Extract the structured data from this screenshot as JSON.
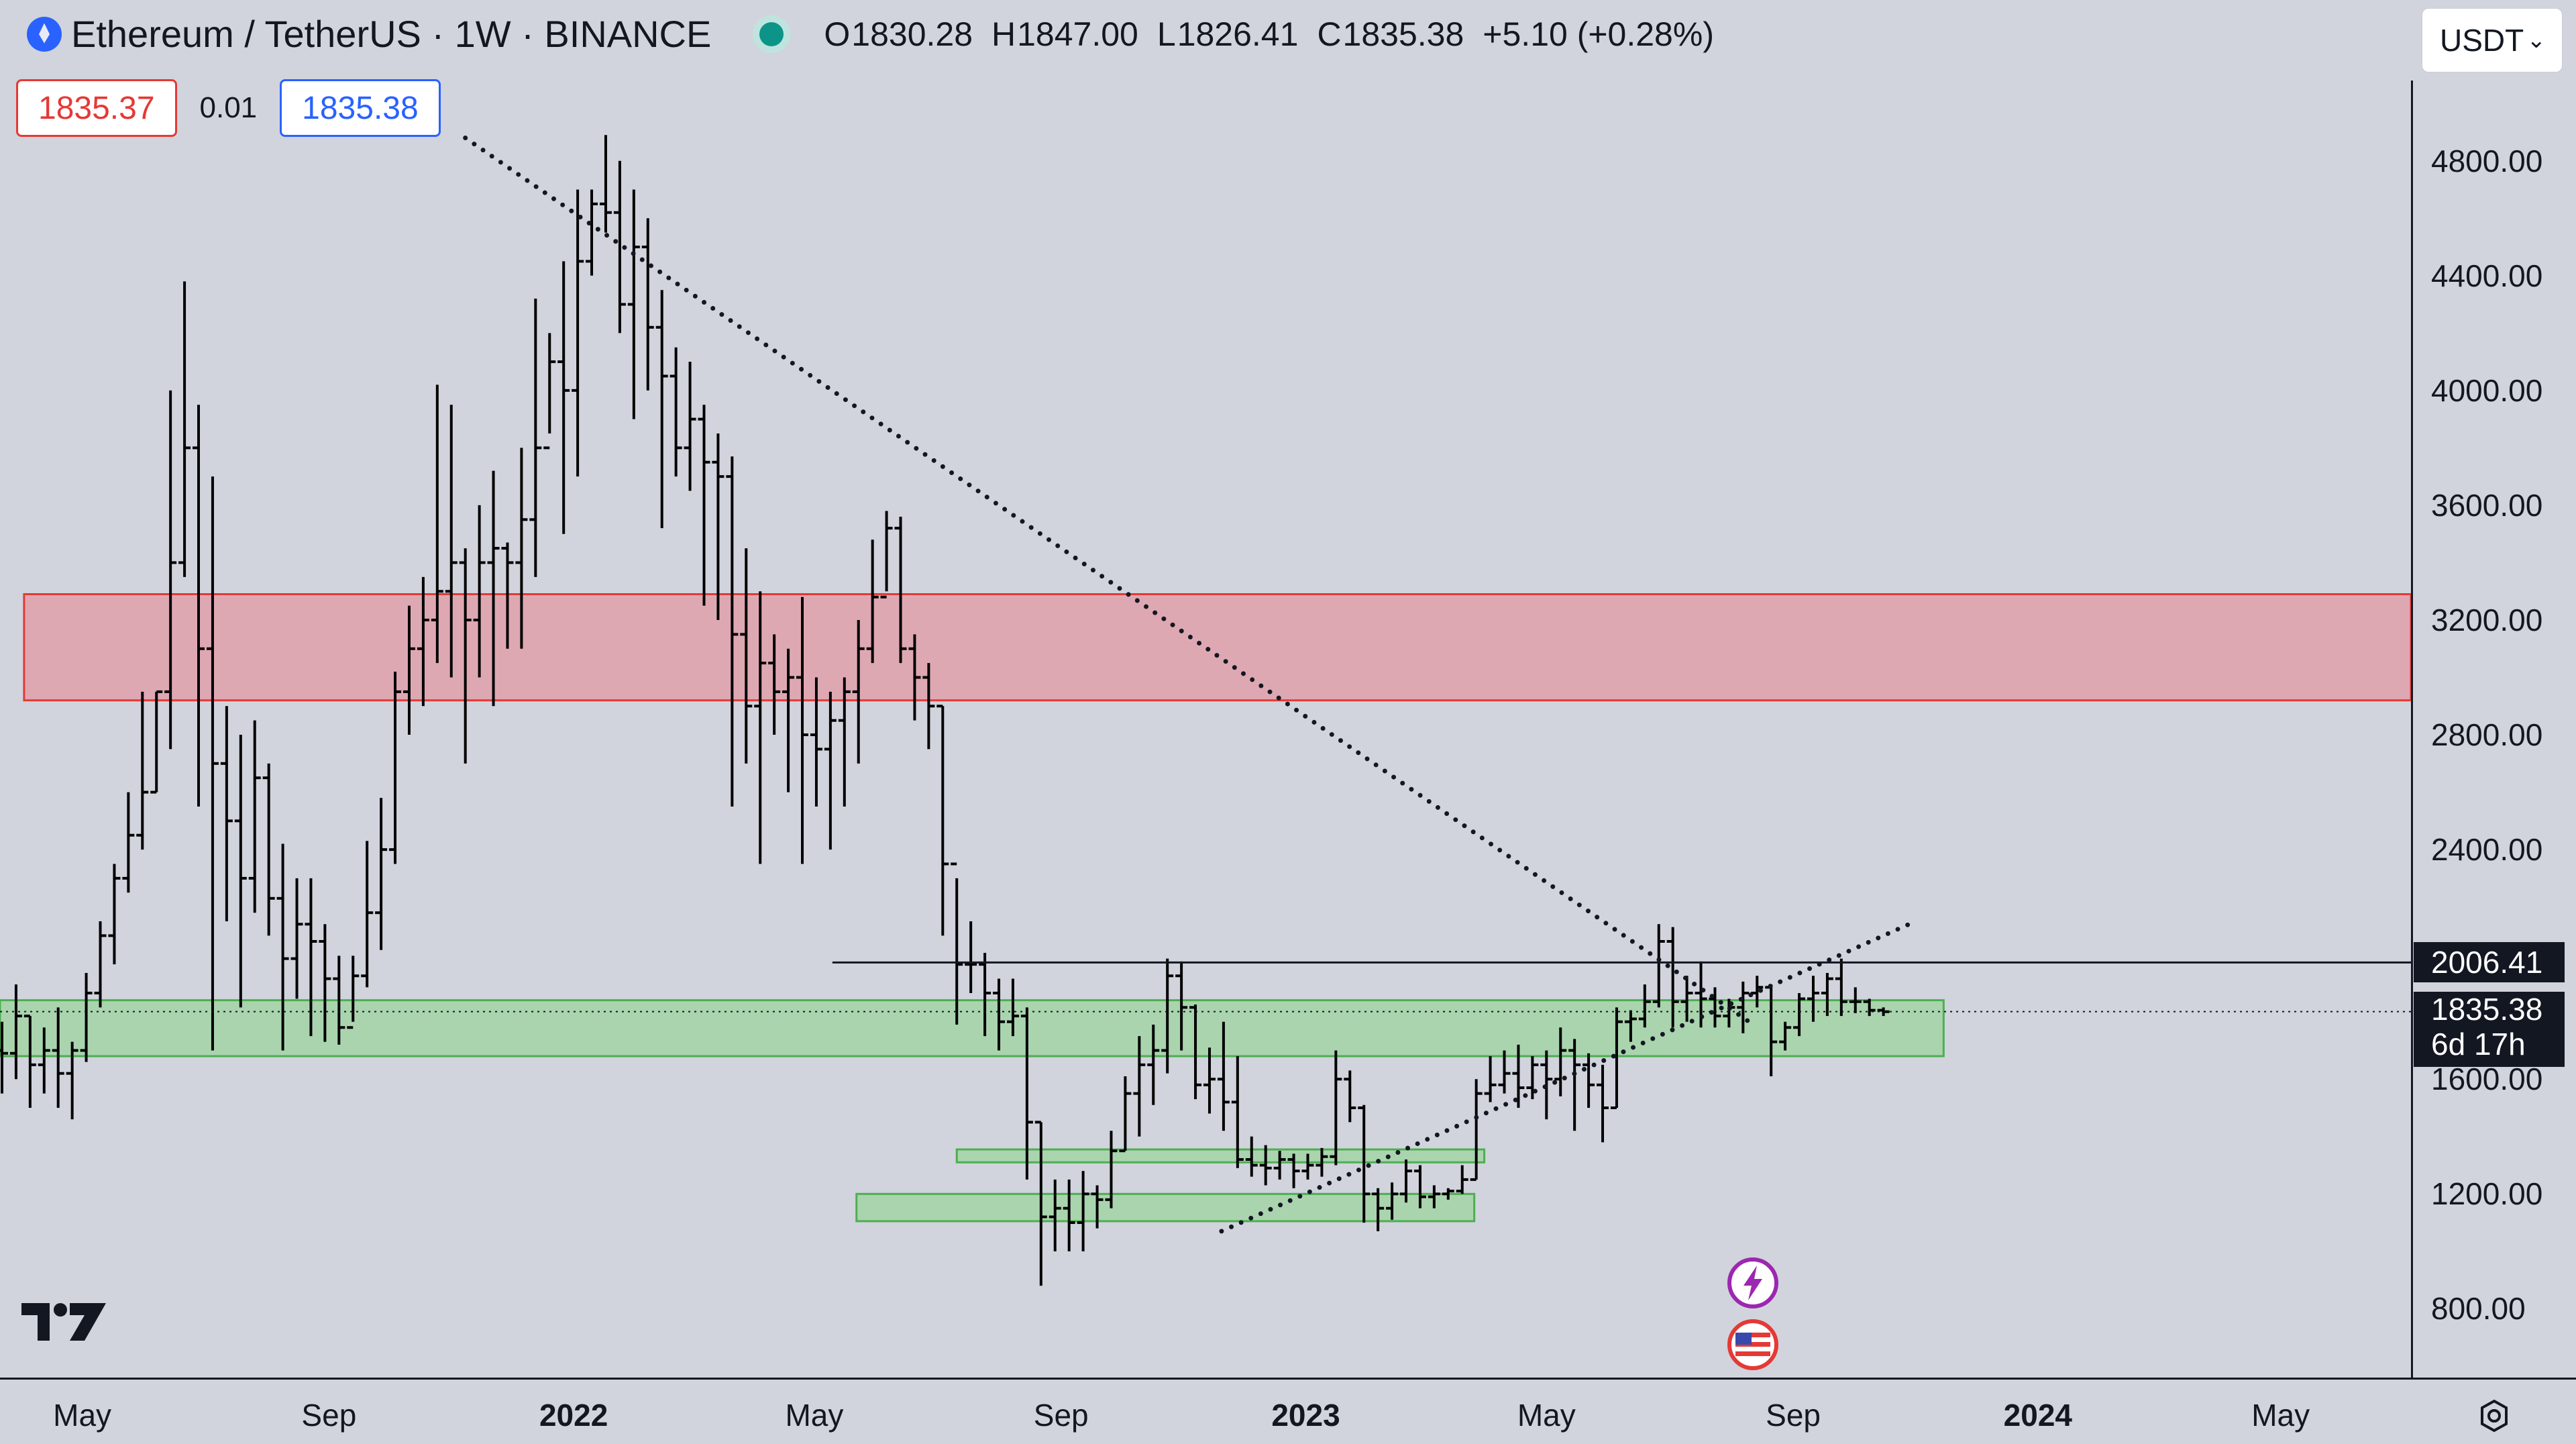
{
  "header": {
    "symbol_title": "Ethereum / TetherUS · 1W · BINANCE",
    "ohlc": {
      "open_label": "O",
      "open": "1830.28",
      "high_label": "H",
      "high": "1847.00",
      "low_label": "L",
      "low": "1826.41",
      "close_label": "C",
      "close": "1835.38",
      "change": "+5.10 (+0.28%)"
    },
    "currency": "USDT"
  },
  "trade": {
    "sell_price": "1835.37",
    "spread": "0.01",
    "buy_price": "1835.38"
  },
  "axis_tags": {
    "level": "2006.41",
    "last": "1835.38",
    "countdown": "6d 17h"
  },
  "icons": [
    "symbol-logo-icon",
    "market-open-dot-icon",
    "chevron-down-icon",
    "tradingview-logo-icon",
    "lightning-event-icon",
    "us-flag-event-icon",
    "settings-icon"
  ],
  "colors": {
    "background": "#d1d4dc",
    "resistance_zone_fill": "#dea8b3",
    "resistance_zone_border": "#e53935",
    "support_zone_fill": "#a3d3a6",
    "support_zone_border": "#4caf50",
    "bars": "#000000",
    "sell": "#e53935",
    "buy": "#2962ff"
  },
  "chart_data": {
    "type": "ohlc_bar",
    "symbol": "ETH/USDT",
    "interval": "1W",
    "y_ticks": [
      800,
      1200,
      1600,
      2000,
      2400,
      2800,
      3200,
      3600,
      4000,
      4400,
      4800
    ],
    "y_tick_labels": [
      "800.00",
      "1200.00",
      "1600.00",
      "2000.00",
      "2400.00",
      "2800.00",
      "3200.00",
      "3600.00",
      "4000.00",
      "4400.00",
      "4800.00"
    ],
    "ylim": [
      560,
      5080
    ],
    "xlim": [
      "2021-03-21",
      "2024-07-05"
    ],
    "x_ticks": [
      {
        "date": "2021-05-01",
        "label": "May",
        "bold": false
      },
      {
        "date": "2021-09-01",
        "label": "Sep",
        "bold": false
      },
      {
        "date": "2022-01-01",
        "label": "2022",
        "bold": true
      },
      {
        "date": "2022-05-01",
        "label": "May",
        "bold": false
      },
      {
        "date": "2022-09-01",
        "label": "Sep",
        "bold": false
      },
      {
        "date": "2023-01-01",
        "label": "2023",
        "bold": true
      },
      {
        "date": "2023-05-01",
        "label": "May",
        "bold": false
      },
      {
        "date": "2023-09-01",
        "label": "Sep",
        "bold": false
      },
      {
        "date": "2024-01-01",
        "label": "2024",
        "bold": true
      },
      {
        "date": "2024-05-01",
        "label": "May",
        "bold": false
      }
    ],
    "first_bar": "2021-03-22",
    "bars": [
      [
        1700,
        1800,
        1550,
        1690
      ],
      [
        1690,
        1930,
        1600,
        1820
      ],
      [
        1820,
        1820,
        1500,
        1650
      ],
      [
        1650,
        1780,
        1550,
        1700
      ],
      [
        1700,
        1850,
        1500,
        1620
      ],
      [
        1620,
        1730,
        1460,
        1700
      ],
      [
        1700,
        1970,
        1660,
        1900
      ],
      [
        1900,
        2150,
        1850,
        2100
      ],
      [
        2100,
        2350,
        2000,
        2300
      ],
      [
        2300,
        2600,
        2250,
        2450
      ],
      [
        2450,
        2950,
        2400,
        2600
      ],
      [
        2600,
        2950,
        2600,
        2950
      ],
      [
        2950,
        4000,
        2750,
        3400
      ],
      [
        3400,
        4380,
        3350,
        3800
      ],
      [
        3800,
        3950,
        2550,
        3100
      ],
      [
        3100,
        3700,
        1700,
        2700
      ],
      [
        2700,
        2900,
        2150,
        2500
      ],
      [
        2500,
        2800,
        1850,
        2300
      ],
      [
        2300,
        2850,
        2180,
        2650
      ],
      [
        2650,
        2700,
        2100,
        2230
      ],
      [
        2230,
        2420,
        1700,
        2020
      ],
      [
        2020,
        2300,
        1880,
        2140
      ],
      [
        2140,
        2300,
        1750,
        2080
      ],
      [
        2080,
        2140,
        1730,
        1950
      ],
      [
        1950,
        2030,
        1720,
        1780
      ],
      [
        1780,
        2030,
        1800,
        1960
      ],
      [
        1960,
        2430,
        1920,
        2180
      ],
      [
        2180,
        2580,
        2050,
        2400
      ],
      [
        2400,
        3020,
        2350,
        2950
      ],
      [
        2950,
        3250,
        2800,
        3100
      ],
      [
        3100,
        3350,
        2900,
        3200
      ],
      [
        3200,
        4020,
        3050,
        3300
      ],
      [
        3300,
        3950,
        3000,
        3400
      ],
      [
        3400,
        3450,
        2700,
        3200
      ],
      [
        3200,
        3600,
        3000,
        3400
      ],
      [
        3400,
        3720,
        2900,
        3450
      ],
      [
        3450,
        3470,
        3100,
        3400
      ],
      [
        3400,
        3800,
        3100,
        3550
      ],
      [
        3550,
        4320,
        3350,
        3800
      ],
      [
        3800,
        4200,
        3850,
        4100
      ],
      [
        4100,
        4450,
        3500,
        4000
      ],
      [
        4000,
        4700,
        3700,
        4450
      ],
      [
        4450,
        4700,
        4400,
        4650
      ],
      [
        4650,
        4890,
        4550,
        4620
      ],
      [
        4620,
        4800,
        4200,
        4300
      ],
      [
        4300,
        4700,
        3900,
        4500
      ],
      [
        4500,
        4600,
        4000,
        4220
      ],
      [
        4220,
        4350,
        3520,
        4050
      ],
      [
        4050,
        4150,
        3700,
        3800
      ],
      [
        3800,
        4100,
        3650,
        3900
      ],
      [
        3900,
        3950,
        3250,
        3750
      ],
      [
        3750,
        3850,
        3200,
        3700
      ],
      [
        3700,
        3770,
        2550,
        3150
      ],
      [
        3150,
        3450,
        2700,
        2900
      ],
      [
        2900,
        3300,
        2350,
        3050
      ],
      [
        3050,
        3150,
        2800,
        2950
      ],
      [
        2950,
        3100,
        2600,
        3000
      ],
      [
        3000,
        3280,
        2350,
        2800
      ],
      [
        2800,
        3000,
        2550,
        2750
      ],
      [
        2750,
        2950,
        2400,
        2850
      ],
      [
        2850,
        3000,
        2550,
        2950
      ],
      [
        2950,
        3200,
        2700,
        3100
      ],
      [
        3100,
        3480,
        3050,
        3280
      ],
      [
        3280,
        3580,
        3300,
        3520
      ],
      [
        3520,
        3560,
        3050,
        3100
      ],
      [
        3100,
        3150,
        2850,
        3000
      ],
      [
        3000,
        3050,
        2750,
        2900
      ],
      [
        2900,
        2900,
        2100,
        2350
      ],
      [
        2350,
        2300,
        1790,
        2000
      ],
      [
        2000,
        2150,
        1900,
        2000
      ],
      [
        2000,
        2040,
        1750,
        1900
      ],
      [
        1900,
        1950,
        1700,
        1800
      ],
      [
        1800,
        1950,
        1750,
        1820
      ],
      [
        1820,
        1850,
        1250,
        1450
      ],
      [
        1450,
        1450,
        880,
        1120
      ],
      [
        1120,
        1250,
        1000,
        1150
      ],
      [
        1150,
        1250,
        1000,
        1100
      ],
      [
        1100,
        1280,
        1000,
        1200
      ],
      [
        1200,
        1230,
        1080,
        1180
      ],
      [
        1180,
        1420,
        1150,
        1350
      ],
      [
        1350,
        1610,
        1350,
        1550
      ],
      [
        1550,
        1750,
        1400,
        1650
      ],
      [
        1650,
        1790,
        1510,
        1700
      ],
      [
        1700,
        2020,
        1620,
        1960
      ],
      [
        1960,
        2010,
        1700,
        1850
      ],
      [
        1850,
        1860,
        1530,
        1580
      ],
      [
        1580,
        1710,
        1480,
        1600
      ],
      [
        1600,
        1800,
        1420,
        1520
      ],
      [
        1520,
        1680,
        1290,
        1320
      ],
      [
        1320,
        1400,
        1260,
        1300
      ],
      [
        1300,
        1370,
        1230,
        1290
      ],
      [
        1290,
        1350,
        1250,
        1320
      ],
      [
        1320,
        1340,
        1220,
        1280
      ],
      [
        1280,
        1340,
        1250,
        1300
      ],
      [
        1300,
        1360,
        1260,
        1330
      ],
      [
        1330,
        1700,
        1300,
        1600
      ],
      [
        1600,
        1630,
        1450,
        1500
      ],
      [
        1500,
        1510,
        1100,
        1200
      ],
      [
        1200,
        1220,
        1070,
        1150
      ],
      [
        1150,
        1240,
        1110,
        1200
      ],
      [
        1200,
        1320,
        1170,
        1280
      ],
      [
        1280,
        1300,
        1150,
        1190
      ],
      [
        1190,
        1230,
        1150,
        1200
      ],
      [
        1200,
        1220,
        1180,
        1210
      ],
      [
        1210,
        1300,
        1200,
        1250
      ],
      [
        1250,
        1600,
        1250,
        1550
      ],
      [
        1550,
        1680,
        1520,
        1580
      ],
      [
        1580,
        1700,
        1550,
        1620
      ],
      [
        1620,
        1720,
        1500,
        1570
      ],
      [
        1570,
        1680,
        1530,
        1650
      ],
      [
        1650,
        1700,
        1460,
        1600
      ],
      [
        1600,
        1780,
        1540,
        1700
      ],
      [
        1700,
        1740,
        1420,
        1650
      ],
      [
        1650,
        1690,
        1500,
        1580
      ],
      [
        1580,
        1650,
        1380,
        1500
      ],
      [
        1500,
        1850,
        1500,
        1800
      ],
      [
        1800,
        1840,
        1730,
        1810
      ],
      [
        1810,
        1930,
        1780,
        1870
      ],
      [
        1870,
        2140,
        1850,
        2080
      ],
      [
        2080,
        2130,
        1780,
        1870
      ],
      [
        1870,
        1960,
        1800,
        1900
      ],
      [
        1900,
        2010,
        1780,
        1880
      ],
      [
        1880,
        1920,
        1780,
        1820
      ],
      [
        1820,
        1880,
        1780,
        1850
      ],
      [
        1850,
        1940,
        1760,
        1900
      ],
      [
        1900,
        1960,
        1850,
        1920
      ],
      [
        1920,
        1930,
        1610,
        1730
      ],
      [
        1730,
        1800,
        1700,
        1780
      ],
      [
        1780,
        1900,
        1750,
        1880
      ],
      [
        1880,
        1960,
        1800,
        1900
      ],
      [
        1900,
        1970,
        1820,
        1950
      ],
      [
        1950,
        2020,
        1820,
        1870
      ],
      [
        1870,
        1920,
        1830,
        1870
      ],
      [
        1870,
        1880,
        1820,
        1840
      ],
      [
        1840,
        1850,
        1820,
        1835
      ]
    ],
    "resistance_zone": {
      "from": "2021-03-21",
      "to": "2024-07-05",
      "low": 2920,
      "high": 3290
    },
    "support_zones": [
      {
        "from": "2021-03-21",
        "to": "2023-11-15",
        "low": 1680,
        "high": 1875
      },
      {
        "from": "2022-07-11",
        "to": "2023-03-31",
        "low": 1310,
        "high": 1355
      },
      {
        "from": "2022-05-22",
        "to": "2023-03-26",
        "low": 1105,
        "high": 1200
      }
    ],
    "trendlines": [
      {
        "name": "descending",
        "style": "dotted",
        "from": {
          "date": "2021-11-08",
          "price": 4880
        },
        "to": {
          "date": "2023-08-10",
          "price": 1800
        }
      },
      {
        "name": "ascending",
        "style": "dotted",
        "from": {
          "date": "2022-11-20",
          "price": 1070
        },
        "to": {
          "date": "2023-11-01",
          "price": 2150
        }
      }
    ],
    "horizontal_level": {
      "price": 2006.41,
      "from": "2022-05-10",
      "label": "2006.41"
    },
    "last_price_line": {
      "price": 1835.38,
      "style": "dotted",
      "label": "1835.38"
    },
    "event_marks": [
      {
        "date": "2023-08-12",
        "kind": "lightning"
      },
      {
        "date": "2023-08-12",
        "kind": "us-flag"
      }
    ]
  }
}
